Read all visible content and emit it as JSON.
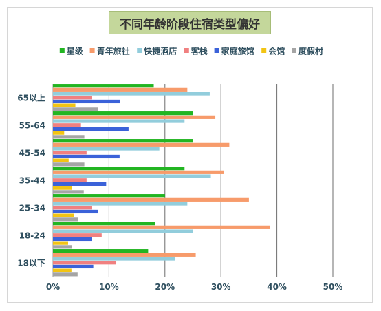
{
  "chart_data": {
    "type": "bar",
    "orientation": "horizontal",
    "title": "不同年龄阶段住宿类型偏好",
    "categories": [
      "65以上",
      "55-64",
      "45-54",
      "35-44",
      "25-34",
      "18-24",
      "18以下"
    ],
    "xlim": [
      0,
      50
    ],
    "x_ticks": [
      "0%",
      "10%",
      "20%",
      "30%",
      "40%",
      "50%"
    ],
    "x_tick_values": [
      0,
      10,
      20,
      30,
      40,
      50
    ],
    "grid": true,
    "legend_position": "top",
    "series": [
      {
        "name": "星级",
        "color": "#22b522",
        "values": [
          18,
          25,
          25,
          23.5,
          20,
          18.2,
          17
        ]
      },
      {
        "name": "青年旅社",
        "color": "#f79b6b",
        "values": [
          24,
          29,
          31.5,
          30.5,
          35,
          38.8,
          25.5
        ]
      },
      {
        "name": "快捷酒店",
        "color": "#92cddc",
        "values": [
          28,
          23.5,
          19,
          28.2,
          24,
          25,
          21.8
        ]
      },
      {
        "name": "客栈",
        "color": "#f08080",
        "values": [
          7,
          5,
          6,
          6,
          7,
          8.7,
          11.3
        ]
      },
      {
        "name": "家庭旅馆",
        "color": "#3b62d9",
        "values": [
          12,
          13.5,
          11.9,
          9.5,
          8,
          7,
          7.2
        ]
      },
      {
        "name": "会馆",
        "color": "#f2c414",
        "values": [
          4,
          2,
          2.8,
          3.4,
          3.8,
          2.7,
          3.3
        ]
      },
      {
        "name": "度假村",
        "color": "#a5a5a5",
        "values": [
          8,
          5.6,
          5.6,
          5.5,
          4.5,
          3.4,
          4.4
        ]
      }
    ]
  }
}
